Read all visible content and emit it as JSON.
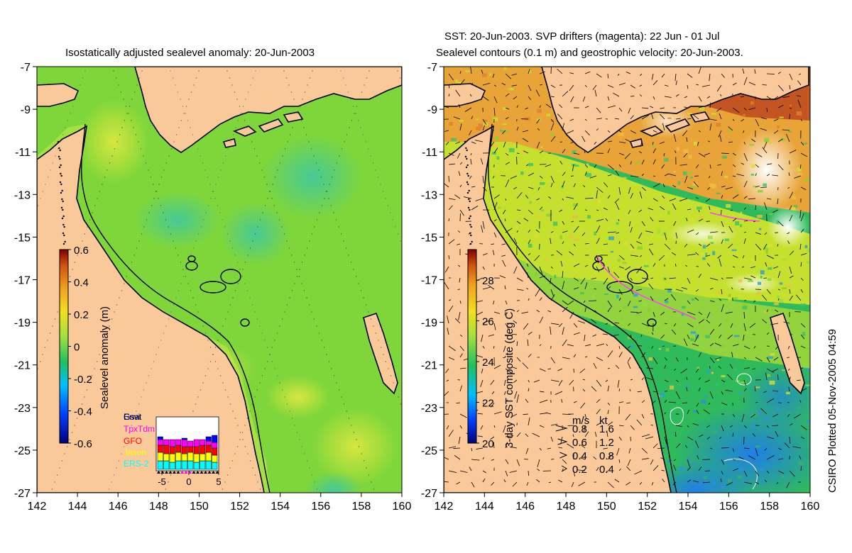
{
  "left_panel": {
    "title": "Isostatically adjusted sealevel anomaly: 20-Jun-2003",
    "colorbar": {
      "label": "Sealevel anomaly (m)",
      "ticks": [
        "0.6",
        "0.4",
        "0.2",
        "0",
        "-0.2",
        "-0.4",
        "-0.6"
      ],
      "range": [
        -0.6,
        0.6
      ]
    },
    "satellite_legend": {
      "entries": [
        {
          "name": "Envi",
          "color": "#0000ff"
        },
        {
          "name": "Gsat",
          "color": "#000000"
        },
        {
          "name": "TpxTdm",
          "color": "#ff00ff"
        },
        {
          "name": "GFO",
          "color": "#ff0000"
        },
        {
          "name": "Jason",
          "color": "#ffff00"
        },
        {
          "name": "ERS-2",
          "color": "#00ffff"
        }
      ],
      "x_ticks": [
        "-5",
        "0",
        "5"
      ]
    }
  },
  "right_panel": {
    "title_line1": "SST: 20-Jun-2003. SVP drifters (magenta): 22 Jun - 01 Jul",
    "title_line2": "Sealevel contours (0.1 m) and geostrophic velocity: 20-Jun-2003.",
    "colorbar": {
      "label": "3-day SST composite (deg C)",
      "ticks": [
        "28",
        "26",
        "24",
        "22",
        "20"
      ],
      "range": [
        20,
        29.5
      ]
    },
    "velocity_legend": {
      "header_ms": "m/s",
      "header_kt": "kt",
      "rows": [
        {
          "ms": "0.8",
          "kt": "1.6"
        },
        {
          "ms": "0.6",
          "kt": "1.2"
        },
        {
          "ms": "0.4",
          "kt": "0.8"
        },
        {
          "ms": "0.2",
          "kt": "0.4"
        }
      ]
    },
    "credit": "CSIRO Plotted 05-Nov-2005 04:59"
  },
  "axes": {
    "lat_ticks": [
      "-7",
      "-9",
      "-11",
      "-13",
      "-15",
      "-17",
      "-19",
      "-21",
      "-23",
      "-25",
      "-27"
    ],
    "lon_ticks": [
      "142",
      "144",
      "146",
      "148",
      "150",
      "152",
      "154",
      "156",
      "158",
      "160"
    ]
  },
  "colors": {
    "land": "#f9c99a",
    "sla_main": "#7fd63a",
    "sla_low": "#33c06b",
    "sla_high": "#c3e33b",
    "sst_warm": "#e8a33a",
    "sst_hot": "#b84c18",
    "sst_mid": "#b8dd2c",
    "sst_cool": "#2db86a",
    "sst_cold": "#2f8fe0"
  }
}
